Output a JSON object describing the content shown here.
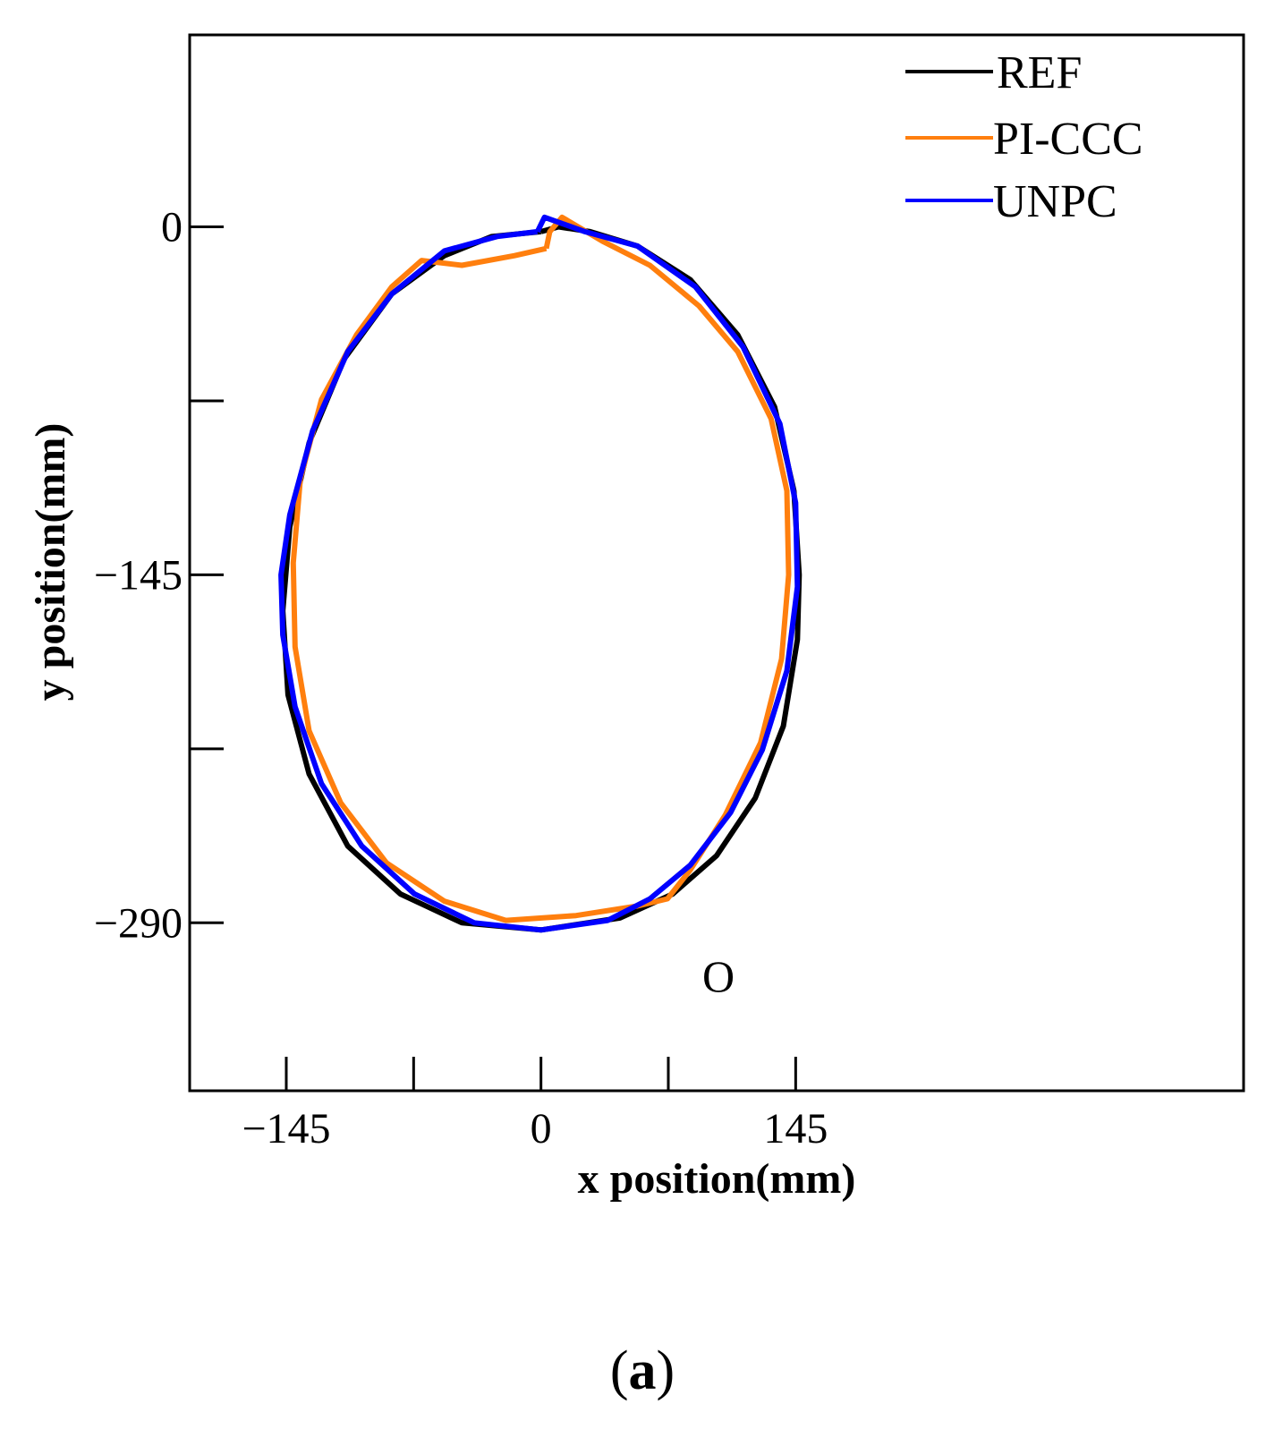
{
  "chart_data": {
    "type": "line",
    "xlabel": "x position(mm)",
    "ylabel": "y position(mm)",
    "xlim": [
      -200,
      400
    ],
    "ylim": [
      -360,
      80
    ],
    "xticks": [
      {
        "value": -145,
        "label": "−145"
      },
      {
        "value": -72.5,
        "label": ""
      },
      {
        "value": 0,
        "label": "0"
      },
      {
        "value": 72.5,
        "label": ""
      },
      {
        "value": 145,
        "label": "145"
      }
    ],
    "yticks": [
      {
        "value": 0,
        "label": "0"
      },
      {
        "value": -72.5,
        "label": ""
      },
      {
        "value": -145,
        "label": "−145"
      },
      {
        "value": -217.5,
        "label": ""
      },
      {
        "value": -290,
        "label": "−290"
      }
    ],
    "grid": false,
    "legend_position": "top-right",
    "annotations": [
      {
        "text": "O",
        "x": 0,
        "y": -315
      }
    ],
    "series": [
      {
        "name": "REF",
        "color": "#000000",
        "points": [
          [
            0,
            -2
          ],
          [
            -28,
            -4
          ],
          [
            -55,
            -12
          ],
          [
            -85,
            -28
          ],
          [
            -112,
            -55
          ],
          [
            -132,
            -90
          ],
          [
            -143,
            -125
          ],
          [
            -147,
            -160
          ],
          [
            -144,
            -195
          ],
          [
            -132,
            -228
          ],
          [
            -110,
            -258
          ],
          [
            -80,
            -278
          ],
          [
            -45,
            -290
          ],
          [
            0,
            -293
          ],
          [
            45,
            -288
          ],
          [
            75,
            -278
          ],
          [
            100,
            -262
          ],
          [
            122,
            -238
          ],
          [
            138,
            -208
          ],
          [
            146,
            -172
          ],
          [
            147,
            -145
          ],
          [
            144,
            -110
          ],
          [
            133,
            -75
          ],
          [
            112,
            -45
          ],
          [
            85,
            -22
          ],
          [
            55,
            -8
          ],
          [
            28,
            -2
          ],
          [
            10,
            0
          ]
        ]
      },
      {
        "name": "PI-CCC",
        "color": "#ff7f0e",
        "points": [
          [
            3,
            -9
          ],
          [
            -15,
            -12
          ],
          [
            -45,
            -16
          ],
          [
            -68,
            -14
          ],
          [
            -85,
            -25
          ],
          [
            -105,
            -45
          ],
          [
            -125,
            -72
          ],
          [
            -137,
            -105
          ],
          [
            -141,
            -140
          ],
          [
            -140,
            -175
          ],
          [
            -132,
            -210
          ],
          [
            -114,
            -240
          ],
          [
            -88,
            -265
          ],
          [
            -55,
            -281
          ],
          [
            -20,
            -289
          ],
          [
            20,
            -287
          ],
          [
            55,
            -283
          ],
          [
            72,
            -280
          ],
          [
            85,
            -268
          ],
          [
            105,
            -245
          ],
          [
            125,
            -215
          ],
          [
            137,
            -180
          ],
          [
            141,
            -145
          ],
          [
            140,
            -110
          ],
          [
            131,
            -80
          ],
          [
            112,
            -52
          ],
          [
            90,
            -33
          ],
          [
            62,
            -16
          ],
          [
            35,
            -6
          ],
          [
            12,
            4
          ],
          [
            5,
            -2
          ]
        ]
      },
      {
        "name": "UNPC",
        "color": "#0000ff",
        "points": [
          [
            -2,
            -2
          ],
          [
            -25,
            -4
          ],
          [
            -55,
            -10
          ],
          [
            -85,
            -28
          ],
          [
            -110,
            -52
          ],
          [
            -130,
            -85
          ],
          [
            -143,
            -120
          ],
          [
            -148,
            -145
          ],
          [
            -147,
            -170
          ],
          [
            -140,
            -200
          ],
          [
            -125,
            -232
          ],
          [
            -102,
            -258
          ],
          [
            -72,
            -278
          ],
          [
            -38,
            -290
          ],
          [
            0,
            -293
          ],
          [
            38,
            -289
          ],
          [
            62,
            -280
          ],
          [
            85,
            -266
          ],
          [
            108,
            -244
          ],
          [
            126,
            -218
          ],
          [
            140,
            -185
          ],
          [
            146,
            -150
          ],
          [
            145,
            -115
          ],
          [
            136,
            -82
          ],
          [
            115,
            -50
          ],
          [
            88,
            -25
          ],
          [
            55,
            -8
          ],
          [
            25,
            -2
          ],
          [
            2,
            4
          ]
        ]
      }
    ]
  },
  "figure": {
    "panel_label_open": "(",
    "panel_label_letter": "a",
    "panel_label_close": ")"
  }
}
